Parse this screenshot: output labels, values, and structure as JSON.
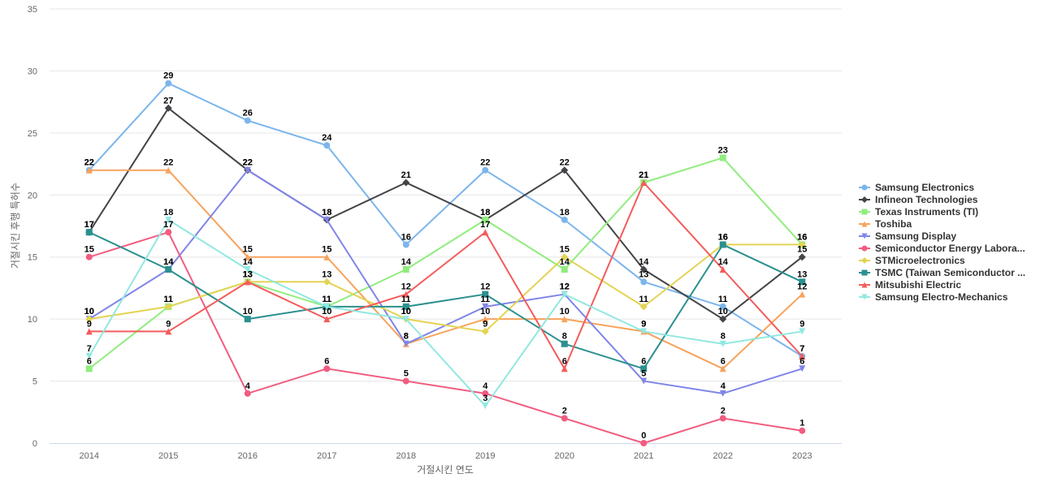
{
  "chart_data": {
    "type": "line",
    "title": "",
    "xlabel": "거절시킨 연도",
    "ylabel": "거절시킨 후행 특허수",
    "ylim": [
      0,
      35
    ],
    "yticks": [
      0,
      5,
      10,
      15,
      20,
      25,
      30,
      35
    ],
    "categories": [
      "2014",
      "2015",
      "2016",
      "2017",
      "2018",
      "2019",
      "2020",
      "2021",
      "2022",
      "2023"
    ],
    "legend_position": "right",
    "series": [
      {
        "name": "Samsung Electronics",
        "color": "#7cb5ec",
        "marker": "circle",
        "values": [
          22,
          29,
          26,
          24,
          16,
          22,
          18,
          13,
          11,
          7
        ]
      },
      {
        "name": "Infineon Technologies",
        "color": "#434348",
        "marker": "diamond",
        "values": [
          17,
          27,
          22,
          18,
          21,
          18,
          22,
          14,
          10,
          15
        ]
      },
      {
        "name": "Texas Instruments (TI)",
        "color": "#90ed7d",
        "marker": "square",
        "values": [
          6,
          11,
          13,
          11,
          14,
          18,
          14,
          21,
          23,
          16
        ]
      },
      {
        "name": "Toshiba",
        "color": "#f7a35c",
        "marker": "triangle",
        "values": [
          22,
          22,
          15,
          15,
          8,
          10,
          10,
          9,
          6,
          12
        ]
      },
      {
        "name": "Samsung Display",
        "color": "#8085e9",
        "marker": "triangle-down",
        "values": [
          10,
          14,
          22,
          18,
          8,
          11,
          12,
          5,
          4,
          6
        ]
      },
      {
        "name": "Semiconductor Energy Labora...",
        "color": "#f15c80",
        "marker": "circle",
        "values": [
          15,
          17,
          4,
          6,
          5,
          4,
          2,
          0,
          2,
          1
        ]
      },
      {
        "name": "STMicroelectronics",
        "color": "#e4d354",
        "marker": "diamond",
        "values": [
          10,
          11,
          13,
          13,
          10,
          9,
          15,
          11,
          16,
          16
        ]
      },
      {
        "name": "TSMC (Taiwan Semiconductor ...",
        "color": "#2b908f",
        "marker": "square",
        "values": [
          17,
          14,
          10,
          11,
          11,
          12,
          8,
          6,
          16,
          13
        ]
      },
      {
        "name": "Mitsubishi Electric",
        "color": "#f45b5b",
        "marker": "triangle",
        "values": [
          9,
          9,
          13,
          10,
          12,
          17,
          6,
          21,
          14,
          7
        ]
      },
      {
        "name": "Samsung Electro-Mechanics",
        "color": "#91e8e1",
        "marker": "triangle-down",
        "values": [
          7,
          18,
          14,
          11,
          10,
          3,
          12,
          9,
          8,
          9
        ]
      }
    ]
  }
}
